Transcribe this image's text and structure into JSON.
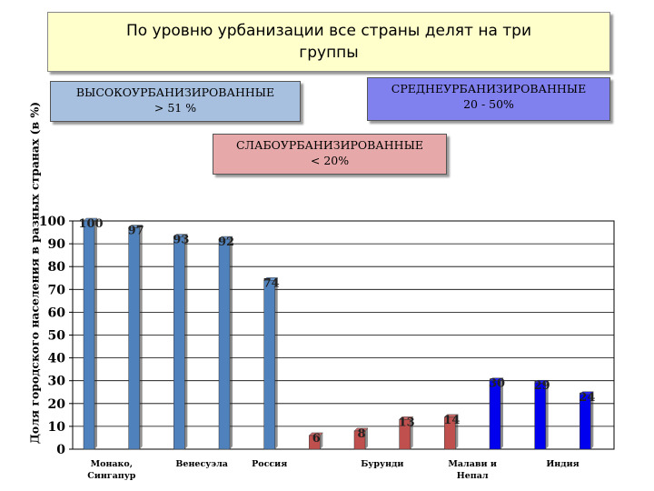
{
  "title": "По уровню урбанизации все страны делят на три группы",
  "groups": {
    "high": {
      "line1": "ВЫСОКОУРБАНИЗИРОВАННЫЕ",
      "line2": "> 51 %",
      "color": "#a7c0e0"
    },
    "medium": {
      "line1": "СРЕДНЕУРБАНИЗИРОВАННЫЕ",
      "line2": "20 - 50%",
      "color": "#8080ee"
    },
    "low": {
      "line1": "СЛАБОУРБАНИЗИРОВАННЫЕ",
      "line2": "< 20%",
      "color": "#e6a8a8"
    }
  },
  "chart_data": {
    "type": "bar",
    "ylabel": "Доля городского населения в разных странах (в %)",
    "xlabel": "",
    "ylim": [
      0,
      100
    ],
    "yticks": [
      0,
      10,
      20,
      30,
      40,
      50,
      60,
      70,
      80,
      90,
      100
    ],
    "grid": true,
    "values": [
      100,
      97,
      93,
      92,
      74,
      6,
      8,
      13,
      14,
      30,
      29,
      24
    ],
    "bar_colors": [
      "#4f81bd",
      "#4f81bd",
      "#4f81bd",
      "#4f81bd",
      "#4f81bd",
      "#c0504d",
      "#c0504d",
      "#c0504d",
      "#c0504d",
      "#0000ee",
      "#0000ee",
      "#0000ee"
    ],
    "category_labels": [
      {
        "text": [
          "Монако,",
          "Сингапур"
        ],
        "bars": [
          0,
          1
        ]
      },
      {
        "text": [
          "Венесуэла"
        ],
        "bars": [
          2,
          3
        ]
      },
      {
        "text": [
          "Россия"
        ],
        "bars": [
          4,
          4
        ]
      },
      {
        "text": [
          "Бурунди"
        ],
        "bars": [
          6,
          7
        ]
      },
      {
        "text": [
          "Малави и",
          "Непал"
        ],
        "bars": [
          8,
          9
        ]
      },
      {
        "text": [
          "Индия"
        ],
        "bars": [
          10,
          11
        ]
      }
    ]
  }
}
